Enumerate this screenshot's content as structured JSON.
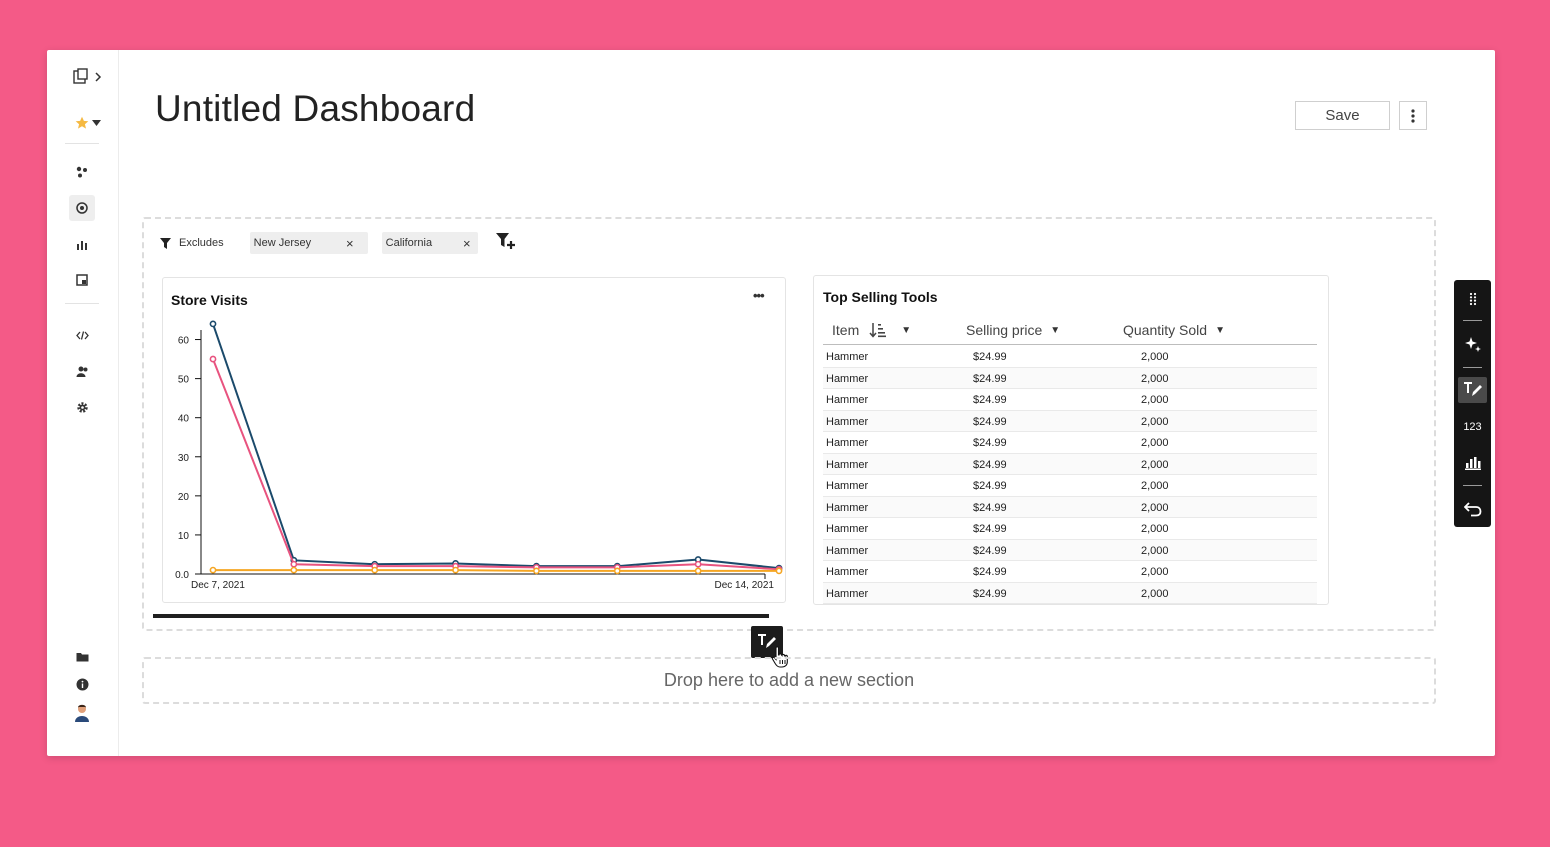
{
  "header": {
    "title": "Untitled Dashboard",
    "save_label": "Save"
  },
  "rail": {
    "top_icons": [
      "pages-icon",
      "chevron-right-icon",
      "star-icon",
      "caret-down-icon"
    ],
    "nav_icons": [
      "nodes-icon",
      "target-icon",
      "bar-chart-icon",
      "panel-icon",
      "code-icon",
      "users-icon",
      "gear-icon"
    ],
    "bottom_icons": [
      "folder-icon",
      "info-icon",
      "avatar"
    ]
  },
  "filters": {
    "label": "Excludes",
    "chips": [
      {
        "label": "New Jersey",
        "remove": "×"
      },
      {
        "label": "California",
        "remove": "×"
      }
    ]
  },
  "store_visits": {
    "title": "Store Visits",
    "more": "•••"
  },
  "chart_data": {
    "type": "line",
    "title": "Store Visits",
    "x": [
      "Dec 7, 2021",
      "Dec 8, 2021",
      "Dec 9, 2021",
      "Dec 10, 2021",
      "Dec 11, 2021",
      "Dec 12, 2021",
      "Dec 13, 2021",
      "Dec 14, 2021"
    ],
    "xtick_labels": [
      "Dec 7, 2021",
      "Dec 14, 2021"
    ],
    "yticks": [
      "0.0",
      "10",
      "20",
      "30",
      "40",
      "50",
      "60"
    ],
    "ylim": [
      0,
      65
    ],
    "grid": false,
    "series": [
      {
        "color": "#1B4A6B",
        "values": [
          64,
          3.5,
          2.5,
          2.7,
          2,
          2,
          3.7,
          1.5
        ]
      },
      {
        "color": "#E8537F",
        "values": [
          55,
          2.5,
          2,
          2,
          1.7,
          1.7,
          2.5,
          1.2
        ]
      },
      {
        "color": "#F5A623",
        "values": [
          1,
          1,
          1,
          1,
          0.8,
          0.8,
          0.8,
          0.8
        ]
      }
    ]
  },
  "top_selling": {
    "title": "Top Selling Tools",
    "columns": [
      "Item",
      "Selling price",
      "Quantity Sold"
    ],
    "rows": [
      [
        "Hammer",
        "$24.99",
        "2,000"
      ],
      [
        "Hammer",
        "$24.99",
        "2,000"
      ],
      [
        "Hammer",
        "$24.99",
        "2,000"
      ],
      [
        "Hammer",
        "$24.99",
        "2,000"
      ],
      [
        "Hammer",
        "$24.99",
        "2,000"
      ],
      [
        "Hammer",
        "$24.99",
        "2,000"
      ],
      [
        "Hammer",
        "$24.99",
        "2,000"
      ],
      [
        "Hammer",
        "$24.99",
        "2,000"
      ],
      [
        "Hammer",
        "$24.99",
        "2,000"
      ],
      [
        "Hammer",
        "$24.99",
        "2,000"
      ],
      [
        "Hammer",
        "$24.99",
        "2,000"
      ],
      [
        "Hammer",
        "$24.99",
        "2,000"
      ]
    ]
  },
  "dropzone": {
    "label": "Drop here to add a new section"
  },
  "toolbar": {
    "items": [
      "drag-handle-icon",
      "sparkle-icon",
      "text-edit-icon",
      "number-icon",
      "chart-icon",
      "undo-icon"
    ],
    "number_label": "123"
  }
}
